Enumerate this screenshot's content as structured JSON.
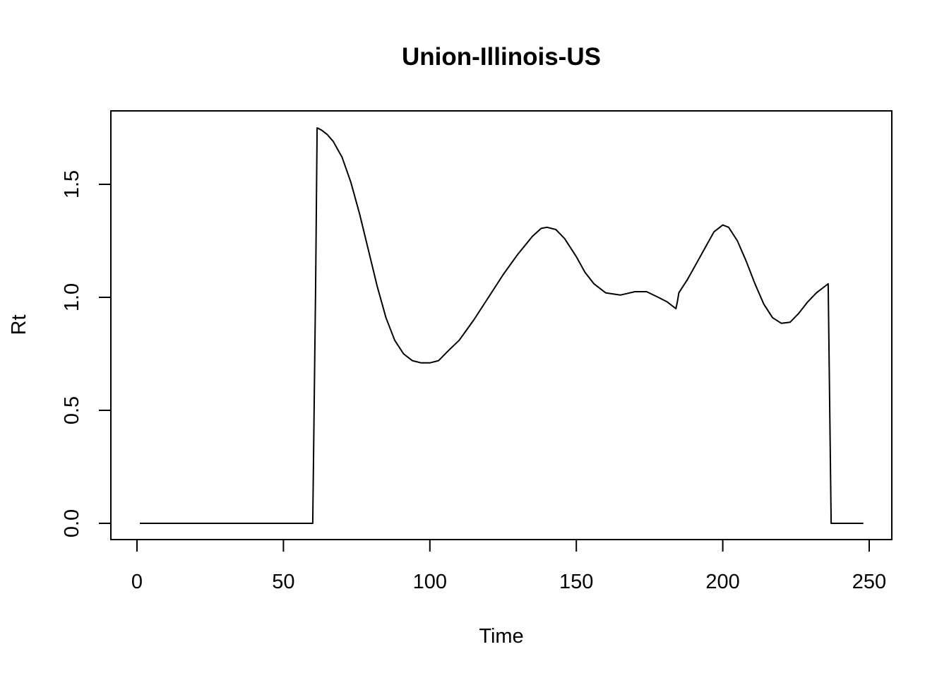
{
  "chart_data": {
    "type": "line",
    "title": "Union-Illinois-US",
    "xlabel": "Time",
    "ylabel": "Rt",
    "xlim": [
      1,
      248
    ],
    "ylim": [
      0,
      1.75
    ],
    "x_ticks": [
      0,
      50,
      100,
      150,
      200,
      250
    ],
    "x_tick_labels": [
      "0",
      "50",
      "100",
      "150",
      "200",
      "250"
    ],
    "y_ticks": [
      0.0,
      0.5,
      1.0,
      1.5
    ],
    "y_tick_labels": [
      "0.0",
      "0.5",
      "1.0",
      "1.5"
    ],
    "grid": false,
    "legend": "none",
    "line_color": "#000000",
    "series": [
      {
        "x": [
          1,
          60,
          61,
          61.5,
          63,
          65,
          67,
          70,
          73,
          76,
          79,
          82,
          85,
          88,
          91,
          94,
          97,
          100,
          103,
          106,
          110,
          115,
          120,
          125,
          130,
          135,
          138,
          140,
          143,
          146,
          150,
          153,
          156,
          160,
          165,
          170,
          174,
          178,
          181,
          184,
          184.5,
          185,
          188,
          191,
          194,
          197,
          200,
          202,
          205,
          208,
          211,
          214,
          217,
          220,
          223,
          226,
          229,
          232,
          235,
          236,
          237,
          248
        ],
        "y": [
          0,
          0,
          1.05,
          1.75,
          1.74,
          1.72,
          1.69,
          1.62,
          1.51,
          1.37,
          1.21,
          1.05,
          0.91,
          0.81,
          0.75,
          0.72,
          0.71,
          0.71,
          0.72,
          0.76,
          0.81,
          0.9,
          1.0,
          1.1,
          1.19,
          1.27,
          1.305,
          1.31,
          1.3,
          1.26,
          1.18,
          1.11,
          1.06,
          1.02,
          1.01,
          1.025,
          1.025,
          1.0,
          0.98,
          0.95,
          0.98,
          1.02,
          1.08,
          1.15,
          1.22,
          1.29,
          1.32,
          1.31,
          1.25,
          1.16,
          1.06,
          0.97,
          0.91,
          0.885,
          0.89,
          0.93,
          0.98,
          1.02,
          1.05,
          1.06,
          0,
          0
        ]
      }
    ]
  }
}
